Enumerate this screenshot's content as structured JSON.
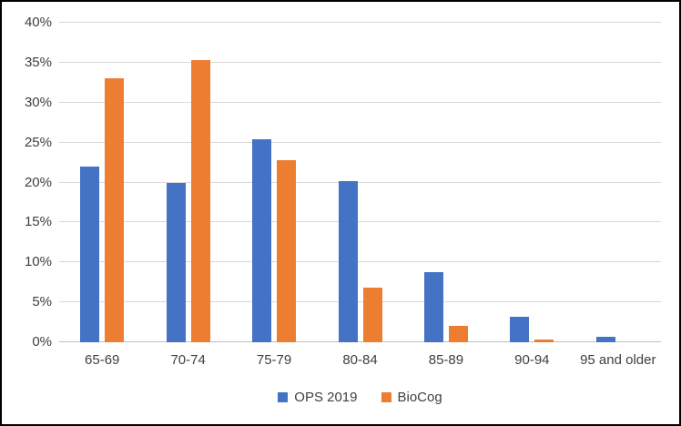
{
  "chart_data": {
    "type": "bar",
    "title": "",
    "xlabel": "",
    "ylabel": "",
    "categories": [
      "65-69",
      "70-74",
      "75-79",
      "80-84",
      "85-89",
      "90-94",
      "95 and older"
    ],
    "series": [
      {
        "name": "OPS 2019",
        "color": "#4472C4",
        "values": [
          22.0,
          19.9,
          25.4,
          20.2,
          8.8,
          3.2,
          0.7
        ]
      },
      {
        "name": "BioCog",
        "color": "#ED7D31",
        "values": [
          33.1,
          35.3,
          22.8,
          6.8,
          2.0,
          0.3,
          0.0
        ]
      }
    ],
    "ylim": [
      0,
      40
    ],
    "y_tick_step": 5,
    "y_tick_labels": [
      "0%",
      "5%",
      "10%",
      "15%",
      "20%",
      "25%",
      "30%",
      "35%",
      "40%"
    ],
    "value_unit": "percent",
    "grid": "horizontal",
    "legend_position": "bottom"
  },
  "colors": {
    "grid": "#D9D9D9",
    "baseline": "#BFBFBF",
    "axis_text": "#404040",
    "frame_border": "#000000",
    "background": "#FFFFFF"
  }
}
